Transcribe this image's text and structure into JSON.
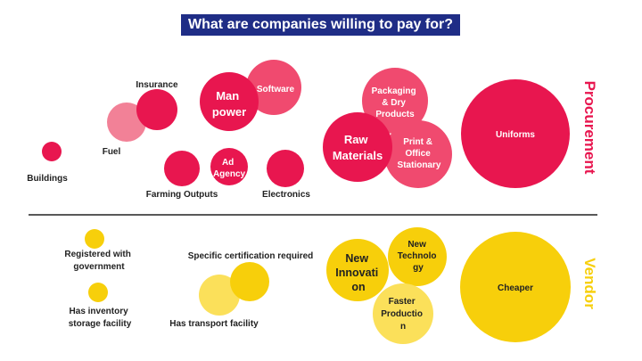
{
  "title": "What are companies willing to pay for?",
  "colors": {
    "procurement": "#e8164f",
    "procurement_light": "#f04a6f",
    "procurement_pale": "#f28197",
    "vendor": "#f7cf0b",
    "vendor_light": "#fbe05a",
    "title_bg": "#1f2d86",
    "divider": "#222222"
  },
  "sections": {
    "procurement_label": "Procurement",
    "vendor_label": "Vendor"
  },
  "procurement_items": [
    {
      "id": "buildings",
      "label": "Buildings"
    },
    {
      "id": "fuel",
      "label": "Fuel"
    },
    {
      "id": "insurance",
      "label": "Insurance"
    },
    {
      "id": "manpower",
      "label": "Man power"
    },
    {
      "id": "software",
      "label": "Software"
    },
    {
      "id": "farming",
      "label": "Farming Outputs"
    },
    {
      "id": "ad-agency",
      "label": "Ad Agency"
    },
    {
      "id": "electronics",
      "label": "Electronics"
    },
    {
      "id": "packaging",
      "label": "Packaging & Dry Products"
    },
    {
      "id": "raw-materials",
      "label": "Raw Materials"
    },
    {
      "id": "print",
      "label": "Print & Office Stationary"
    },
    {
      "id": "uniforms",
      "label": "Uniforms"
    }
  ],
  "vendor_items": [
    {
      "id": "registered",
      "label": "Registered with government"
    },
    {
      "id": "inventory",
      "label": "Has inventory storage facility"
    },
    {
      "id": "certification",
      "label": "Specific certification required"
    },
    {
      "id": "transport",
      "label": "Has transport facility"
    },
    {
      "id": "new-innovation",
      "label": "New Innovation"
    },
    {
      "id": "new-technology",
      "label": "New Technology"
    },
    {
      "id": "faster-production",
      "label": "Faster Production"
    },
    {
      "id": "cheaper",
      "label": "Cheaper"
    }
  ]
}
